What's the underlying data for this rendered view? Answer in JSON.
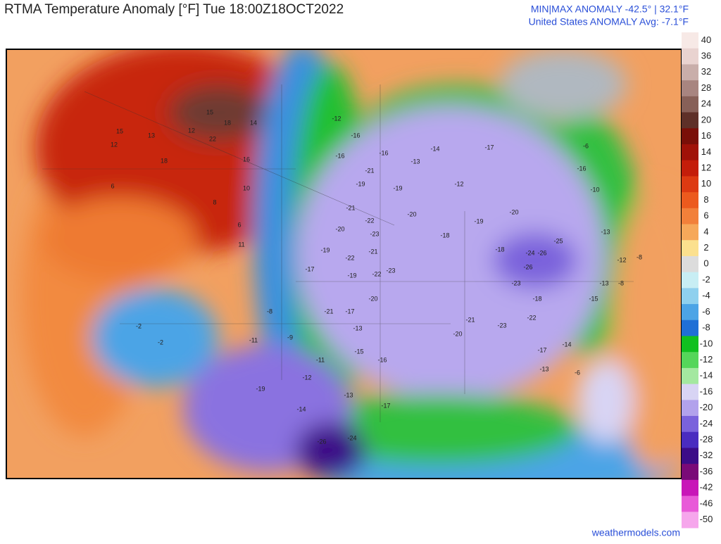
{
  "header": {
    "title": "RTMA Temperature Anomaly [°F]  Tue 18:00Z18OCT2022",
    "stats_line1": "MIN|MAX ANOMALY -42.5° | 32.1°F",
    "stats_line2": "United States ANOMALY Avg: -7.1°F"
  },
  "colorbar": {
    "ticks": [
      40,
      36,
      32,
      28,
      24,
      20,
      16,
      14,
      12,
      10,
      8,
      6,
      4,
      2,
      0,
      -2,
      -4,
      -6,
      -8,
      -10,
      -12,
      -14,
      -16,
      -20,
      -24,
      -28,
      -32,
      -36,
      -42,
      -46,
      -50
    ],
    "colors": [
      "#f7e9e6",
      "#e9d3d0",
      "#c9aeaa",
      "#a88580",
      "#876058",
      "#5e3028",
      "#7a0f08",
      "#a01208",
      "#c41d0a",
      "#dd3a12",
      "#ec5a1e",
      "#f2803a",
      "#f6a85a",
      "#fbe08e",
      "#dcdcdc",
      "#c8eef4",
      "#8fd0ee",
      "#4ca4e6",
      "#1f6fd6",
      "#10c020",
      "#55d65a",
      "#a4e8a0",
      "#d8d4f4",
      "#b2a2ec",
      "#7a62dc",
      "#4a2cc0",
      "#3c0c88",
      "#7a0a78",
      "#c816b8",
      "#e85ad8",
      "#f6a6ec"
    ]
  },
  "map_labels": [
    15,
    18,
    14,
    22,
    13,
    15,
    12,
    18,
    16,
    10,
    12,
    6,
    8,
    6,
    11,
    -12,
    -16,
    -16,
    -21,
    -19,
    -21,
    -22,
    -23,
    -21,
    -20,
    -19,
    -22,
    -17,
    -19,
    -22,
    -23,
    -20,
    -21,
    -17,
    -13,
    -15,
    -16,
    -13,
    -17,
    -26,
    -24,
    -14,
    -19,
    -11,
    -12,
    -11,
    -9,
    -8,
    -2,
    -2,
    -26,
    -26,
    -25,
    -24,
    -23,
    -18,
    -22,
    -23,
    -20,
    -21,
    -17,
    -14,
    -13,
    -6,
    -13,
    -12,
    -8,
    -8,
    -13,
    -15,
    -10,
    -6,
    -14,
    -16,
    -13,
    -17,
    -12,
    -19,
    -20,
    -18,
    -19,
    -18,
    -20,
    -16
  ],
  "footer": {
    "credit": "weathermodels.com"
  }
}
